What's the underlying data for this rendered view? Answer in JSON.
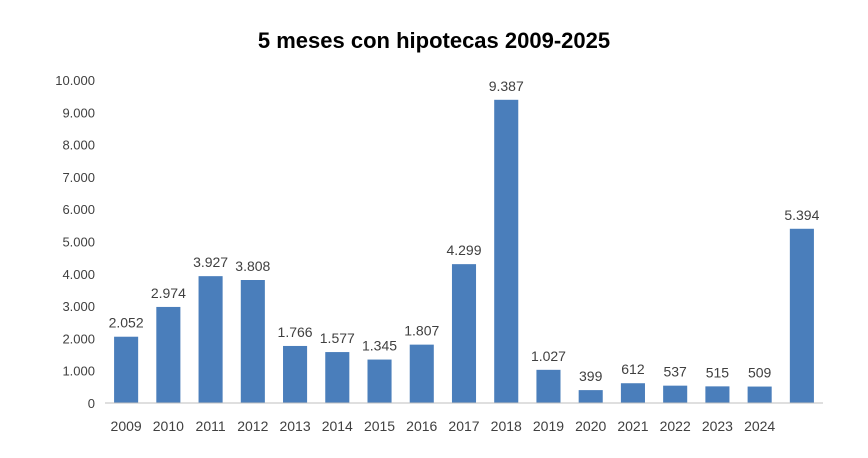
{
  "chart_data": {
    "type": "bar",
    "title": "5 meses con hipotecas 2009-2025",
    "xlabel": "",
    "ylabel": "",
    "categories": [
      "2009",
      "2010",
      "2011",
      "2012",
      "2013",
      "2014",
      "2015",
      "2016",
      "2017",
      "2018",
      "2019",
      "2020",
      "2021",
      "2022",
      "2023",
      "2024",
      ""
    ],
    "values": [
      2052,
      2974,
      3927,
      3808,
      1766,
      1577,
      1345,
      1807,
      4299,
      9387,
      1027,
      399,
      612,
      537,
      515,
      509,
      5394
    ],
    "value_labels": [
      "2.052",
      "2.974",
      "3.927",
      "3.808",
      "1.766",
      "1.577",
      "1.345",
      "1.807",
      "4.299",
      "9.387",
      "1.027",
      "399",
      "612",
      "537",
      "515",
      "509",
      "5.394"
    ],
    "ylim": [
      0,
      10000
    ],
    "yticks": [
      0,
      1000,
      2000,
      3000,
      4000,
      5000,
      6000,
      7000,
      8000,
      9000,
      10000
    ],
    "ytick_labels": [
      "0",
      "1.000",
      "2.000",
      "3.000",
      "4.000",
      "5.000",
      "6.000",
      "7.000",
      "8.000",
      "9.000",
      "10.000"
    ],
    "grid": false,
    "legend": "none",
    "bar_color": "#4a7ebb"
  }
}
